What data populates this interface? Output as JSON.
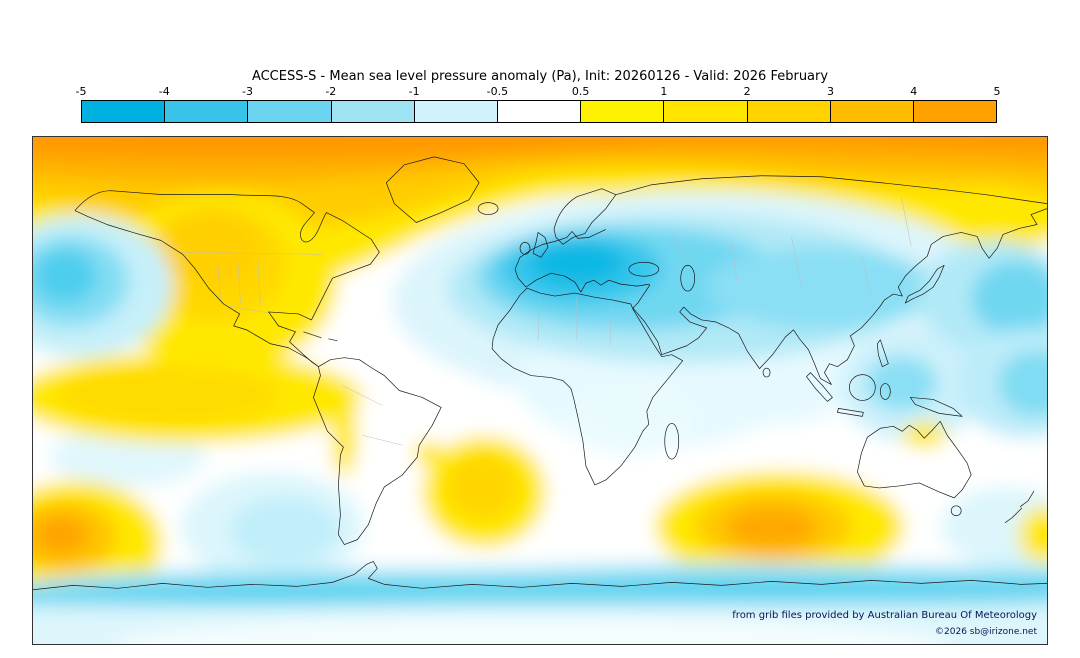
{
  "title": "ACCESS-S - Mean sea level pressure anomaly (Pa), Init: 20260126 - Valid: 2026 February",
  "colorbar": {
    "tick_labels": [
      "-5",
      "-4",
      "-3",
      "-2",
      "-1",
      "-0.5",
      "0.5",
      "1",
      "2",
      "3",
      "4",
      "5"
    ],
    "segments": [
      {
        "range": "-5 to -4",
        "color": "#00b0e0"
      },
      {
        "range": "-4 to -3",
        "color": "#38c4e8"
      },
      {
        "range": "-3 to -2",
        "color": "#6cd4ee"
      },
      {
        "range": "-2 to -1",
        "color": "#a0e4f4"
      },
      {
        "range": "-1 to -0.5",
        "color": "#d0f2fa"
      },
      {
        "range": "-0.5 to 0.5",
        "color": "#ffffff"
      },
      {
        "range": "0.5 to 1",
        "color": "#fff200"
      },
      {
        "range": "1 to 2",
        "color": "#ffe400"
      },
      {
        "range": "2 to 3",
        "color": "#ffd200"
      },
      {
        "range": "3 to 4",
        "color": "#ffbc00"
      },
      {
        "range": "4 to 5",
        "color": "#ffa200"
      }
    ]
  },
  "attribution": {
    "line1": "from grib files provided by Australian Bureau Of Meteorology",
    "line2": "©2026 sb@irizone.net"
  },
  "chart_data": {
    "type": "heatmap",
    "title": "ACCESS-S - Mean sea level pressure anomaly (Pa), Init: 20260126 - Valid: 2026 February",
    "variable": "Mean sea level pressure anomaly (Pa)",
    "model": "ACCESS-S",
    "init": "20260126",
    "valid": "2026 February",
    "scale_values": [
      -5,
      -4,
      -3,
      -2,
      -1,
      -0.5,
      0.5,
      1,
      2,
      3,
      4,
      5
    ],
    "scale_colors": [
      "#00b0e0",
      "#38c4e8",
      "#6cd4ee",
      "#a0e4f4",
      "#d0f2fa",
      "#ffffff",
      "#fff200",
      "#ffe400",
      "#ffd200",
      "#ffbc00",
      "#ffa200"
    ],
    "notable_features": [
      "Positive anomaly (orange, +3 to +5) band across the entire Arctic / high northern latitudes",
      "Strong negative anomaly (cyan, -3 to -5) centered over Europe extending across mid-latitude Eurasia",
      "Negative anomaly in Gulf of Alaska / NE Pacific and east of Japan",
      "Positive anomaly over western/central North America",
      "Positive anomaly band in tropical eastern Pacific",
      "Positive anomalies in South Atlantic and southern Indian Ocean mid-latitudes",
      "Negative anomaly ring over the Southern Ocean around Antarctica"
    ]
  }
}
